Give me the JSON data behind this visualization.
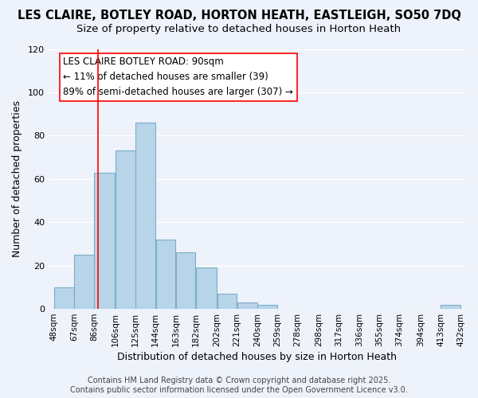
{
  "title": "LES CLAIRE, BOTLEY ROAD, HORTON HEATH, EASTLEIGH, SO50 7DQ",
  "subtitle": "Size of property relative to detached houses in Horton Heath",
  "xlabel": "Distribution of detached houses by size in Horton Heath",
  "ylabel": "Number of detached properties",
  "bar_values": [
    10,
    25,
    63,
    73,
    86,
    32,
    26,
    19,
    7,
    3,
    2,
    0,
    0,
    0,
    0,
    0,
    0,
    0,
    2
  ],
  "bin_left_edges": [
    48,
    67,
    86,
    106,
    125,
    144,
    163,
    182,
    202,
    221,
    240,
    259,
    278,
    298,
    317,
    336,
    355,
    374,
    413
  ],
  "bin_right_edges": [
    67,
    86,
    106,
    125,
    144,
    163,
    182,
    202,
    221,
    240,
    259,
    278,
    298,
    317,
    336,
    355,
    374,
    394,
    432
  ],
  "tick_positions": [
    48,
    67,
    86,
    106,
    125,
    144,
    163,
    182,
    202,
    221,
    240,
    259,
    278,
    298,
    317,
    336,
    355,
    374,
    394,
    413,
    432
  ],
  "tick_labels": [
    "48sqm",
    "67sqm",
    "86sqm",
    "106sqm",
    "125sqm",
    "144sqm",
    "163sqm",
    "182sqm",
    "202sqm",
    "221sqm",
    "240sqm",
    "259sqm",
    "278sqm",
    "298sqm",
    "317sqm",
    "336sqm",
    "355sqm",
    "374sqm",
    "394sqm",
    "413sqm",
    "432sqm"
  ],
  "bar_color": "#b8d4e8",
  "bar_edge_color": "#7aaec8",
  "vline_x": 90,
  "vline_color": "red",
  "annotation_text": "LES CLAIRE BOTLEY ROAD: 90sqm\n← 11% of detached houses are smaller (39)\n89% of semi-detached houses are larger (307) →",
  "ylim": [
    0,
    120
  ],
  "yticks": [
    0,
    20,
    40,
    60,
    80,
    100,
    120
  ],
  "footer_text": "Contains HM Land Registry data © Crown copyright and database right 2025.\nContains public sector information licensed under the Open Government Licence v3.0.",
  "bg_color": "#eef2fb",
  "grid_color": "white",
  "title_fontsize": 10.5,
  "subtitle_fontsize": 9.5,
  "label_fontsize": 9,
  "tick_fontsize": 7.5,
  "annotation_fontsize": 8.5,
  "footer_fontsize": 7
}
